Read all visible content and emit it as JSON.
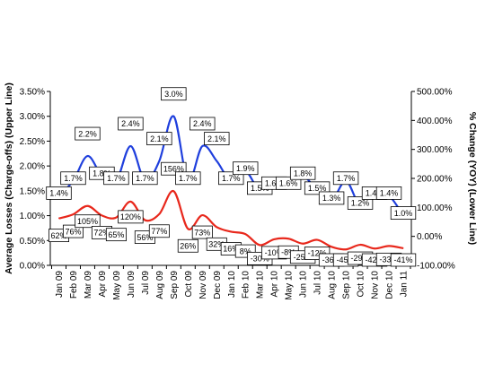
{
  "chart_data": {
    "type": "line",
    "categories": [
      "Jan 09",
      "Feb 09",
      "Mar 09",
      "Apr 09",
      "May 09",
      "Jun 09",
      "Jul 09",
      "Aug 09",
      "Sep 09",
      "Oct 09",
      "Nov 09",
      "Dec 09",
      "Jan 10",
      "Feb 10",
      "Mar 10",
      "Apr 10",
      "May 10",
      "Jun 10",
      "Jul 10",
      "Aug 10",
      "Sep 10",
      "Oct 10",
      "Nov 10",
      "Dec 10",
      "Jan 11"
    ],
    "y_axis_left": {
      "label": "Average Losses (Charge-offs) (Upper Line)",
      "min": 0,
      "max": 3.5,
      "step": 0.5,
      "ticks": [
        "0.00%",
        "0.50%",
        "1.00%",
        "1.50%",
        "2.00%",
        "2.50%",
        "3.00%",
        "3.50%"
      ]
    },
    "y_axis_right": {
      "label": "% Change (YOY) (Lower Line)",
      "min": -100,
      "max": 500,
      "step": 100,
      "ticks": [
        "-100.00%",
        "0.00%",
        "100.00%",
        "200.00%",
        "300.00%",
        "400.00%",
        "500.00%"
      ]
    },
    "series": [
      {
        "axis": "left",
        "color": "#1f3fdd",
        "values": [
          1.4,
          1.7,
          2.2,
          1.8,
          1.7,
          2.4,
          1.7,
          2.1,
          3.0,
          1.7,
          2.4,
          2.1,
          1.7,
          1.9,
          1.5,
          1.6,
          1.6,
          1.8,
          1.5,
          1.3,
          1.7,
          1.2,
          1.4,
          1.4,
          1.0
        ],
        "labels": [
          "1.4%",
          "1.7%",
          "2.2%",
          "1.8%",
          "1.7%",
          "2.4%",
          "1.7%",
          "2.1%",
          "3.0%",
          "1.7%",
          "2.4%",
          "2.1%",
          "1.7%",
          "1.9%",
          "1.5%",
          "1.6%",
          "1.6%",
          "1.8%",
          "1.5%",
          "1.3%",
          "1.7%",
          "1.2%",
          "1.4%",
          "1.4%",
          "1.0%"
        ]
      },
      {
        "axis": "right",
        "color": "#e8281c",
        "values": [
          62,
          76,
          105,
          72,
          65,
          120,
          56,
          77,
          156,
          26,
          73,
          32,
          16,
          8,
          -30,
          -10,
          -8,
          -25,
          -12,
          -36,
          -45,
          -29,
          -42,
          -33,
          -41
        ],
        "labels": [
          "62%",
          "76%",
          "105%",
          "72%",
          "65%",
          "120%",
          "56%",
          "77%",
          "156%",
          "26%",
          "73%",
          "32%",
          "16%",
          "8%",
          "-30%",
          "-10%",
          "-8%",
          "-25%",
          "-12%",
          "-36%",
          "-45%",
          "-29%",
          "-42%",
          "-33%",
          "-41%"
        ]
      }
    ],
    "grid": false,
    "legend": "none",
    "title": ""
  }
}
